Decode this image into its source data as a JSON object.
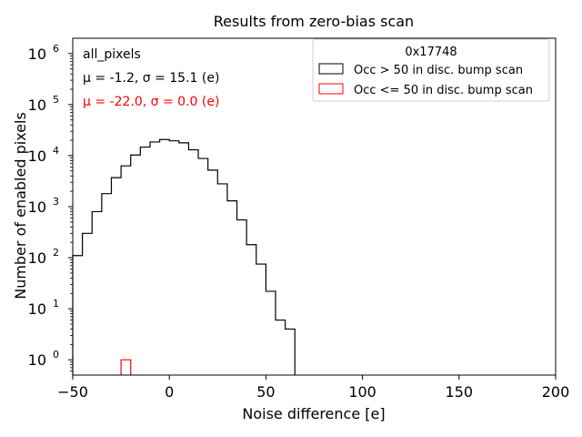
{
  "chart_data": {
    "type": "histogram",
    "title": "Results from zero-bias scan",
    "xlabel": "Noise difference [e]",
    "ylabel": "Number of enabled pixels",
    "xlim": [
      -50,
      200
    ],
    "ylim_log10": [
      -0.3,
      6.3
    ],
    "yscale": "log",
    "grid": false,
    "legend_placement": "top-right",
    "x_ticks": [
      {
        "value": -50,
        "label": "−50"
      },
      {
        "value": 0,
        "label": "0"
      },
      {
        "value": 50,
        "label": "50"
      },
      {
        "value": 100,
        "label": "100"
      },
      {
        "value": 150,
        "label": "150"
      },
      {
        "value": 200,
        "label": "200"
      }
    ],
    "y_ticks": [
      {
        "exp": 0,
        "label_base": "10",
        "label_exp": "0"
      },
      {
        "exp": 1,
        "label_base": "10",
        "label_exp": "1"
      },
      {
        "exp": 2,
        "label_base": "10",
        "label_exp": "2"
      },
      {
        "exp": 3,
        "label_base": "10",
        "label_exp": "3"
      },
      {
        "exp": 4,
        "label_base": "10",
        "label_exp": "4"
      },
      {
        "exp": 5,
        "label_base": "10",
        "label_exp": "5"
      },
      {
        "exp": 6,
        "label_base": "10",
        "label_exp": "6"
      }
    ],
    "annotations": {
      "group": "all_pixels",
      "stats_black": "μ = -1.2, σ = 15.1 (e)",
      "stats_red": "μ = -22.0, σ = 0.0 (e)"
    },
    "legend": {
      "title": "0x17748",
      "entries": [
        "Occ > 50 in disc. bump scan",
        "Occ <= 50 in disc. bump scan"
      ]
    },
    "series": [
      {
        "name": "Occ > 50 in disc. bump scan",
        "color": "#000000",
        "bin_edges": [
          -50,
          -45,
          -40,
          -35,
          -30,
          -25,
          -20,
          -15,
          -10,
          -5,
          0,
          5,
          10,
          15,
          20,
          25,
          30,
          35,
          40,
          45,
          50,
          55,
          60,
          65
        ],
        "counts": [
          110,
          300,
          800,
          1800,
          3700,
          6300,
          10300,
          14700,
          18500,
          20700,
          19500,
          17800,
          13000,
          8800,
          5200,
          2800,
          1300,
          550,
          180,
          75,
          22,
          6,
          4
        ]
      },
      {
        "name": "Occ <= 50 in disc. bump scan",
        "color": "#ff0000",
        "bin_edges": [
          -25,
          -20
        ],
        "counts": [
          1
        ]
      }
    ]
  }
}
